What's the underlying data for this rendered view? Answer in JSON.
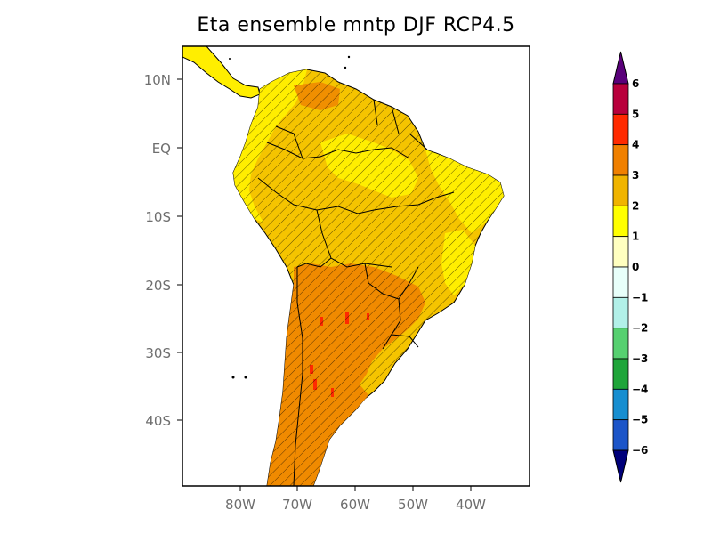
{
  "title": "Eta ensemble mntp DJF RCP4.5",
  "axes": {
    "lat_ticks": [
      "10N",
      "EQ",
      "10S",
      "20S",
      "30S",
      "40S"
    ],
    "lon_ticks": [
      "80W",
      "70W",
      "60W",
      "50W",
      "40W"
    ]
  },
  "colorbar": {
    "labels": [
      "6",
      "5",
      "4",
      "3",
      "2",
      "1",
      "0",
      "−1",
      "−2",
      "−3",
      "−4",
      "−5",
      "−6"
    ],
    "colors_top_to_bottom": [
      "#5a007a",
      "#b8003c",
      "#ff2a00",
      "#f08000",
      "#f0b400",
      "#ffff00",
      "#ffffc0",
      "#e8fffa",
      "#b2f0e8",
      "#56d070",
      "#1fa53a",
      "#178ed0",
      "#1c55c8",
      "#00007a"
    ]
  },
  "map": {
    "region": "South America",
    "hatching": "diagonal hatch marks significance over most of continent",
    "colors": {
      "yellow": "#ffee00",
      "gold": "#f5c400",
      "orange": "#f08a00",
      "red": "#ff2a00"
    }
  }
}
